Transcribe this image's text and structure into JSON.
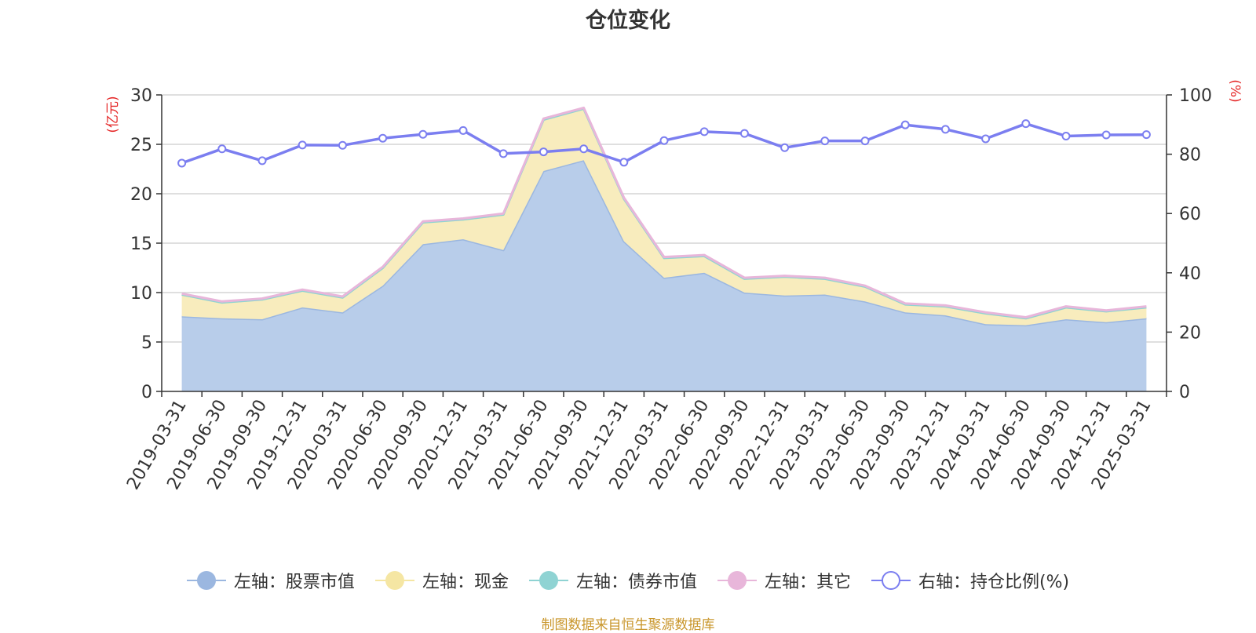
{
  "chart_data": {
    "type": "area",
    "title": "仓位变化",
    "left_axis_label": "(亿元)",
    "right_axis_label": "(%)",
    "left_ylim": [
      0,
      30
    ],
    "left_ticks": [
      0,
      5,
      10,
      15,
      20,
      25,
      30
    ],
    "right_ylim": [
      0,
      100
    ],
    "right_ticks": [
      0,
      20,
      40,
      60,
      80,
      100
    ],
    "grid": true,
    "legend_position": "bottom",
    "categories": [
      "2019-03-31",
      "2019-06-30",
      "2019-09-30",
      "2019-12-31",
      "2020-03-31",
      "2020-06-30",
      "2020-09-30",
      "2020-12-31",
      "2021-03-31",
      "2021-06-30",
      "2021-09-30",
      "2021-12-31",
      "2022-03-31",
      "2022-06-30",
      "2022-09-30",
      "2022-12-31",
      "2023-03-31",
      "2023-06-30",
      "2023-09-30",
      "2023-12-31",
      "2024-03-31",
      "2024-06-30",
      "2024-09-30",
      "2024-12-31",
      "2025-03-31"
    ],
    "series": [
      {
        "name": "左轴：股票市值",
        "axis": "left",
        "kind": "area-stack",
        "color": "#9bb7e0",
        "fill": "#b8cdea",
        "values": [
          7.6,
          7.4,
          7.3,
          8.5,
          8.0,
          10.7,
          14.9,
          15.4,
          14.3,
          22.3,
          23.4,
          15.2,
          11.5,
          12.0,
          10.0,
          9.7,
          9.8,
          9.1,
          8.0,
          7.7,
          6.8,
          6.7,
          7.3,
          7.0,
          7.4
        ]
      },
      {
        "name": "左轴：现金",
        "axis": "left",
        "kind": "area-stack",
        "color": "#f5e6a3",
        "fill": "#f8ecbd",
        "values": [
          2.2,
          1.6,
          2.0,
          1.7,
          1.5,
          1.8,
          2.2,
          2.0,
          3.6,
          5.2,
          5.2,
          4.3,
          2.0,
          1.7,
          1.4,
          1.9,
          1.6,
          1.5,
          0.8,
          0.9,
          1.1,
          0.7,
          1.2,
          1.1,
          1.1
        ]
      },
      {
        "name": "左轴：债券市值",
        "axis": "left",
        "kind": "area-stack",
        "color": "#8fd3d3",
        "fill": "#9ed6d6",
        "values": [
          0,
          0,
          0,
          0,
          0,
          0,
          0,
          0,
          0,
          0,
          0,
          0,
          0,
          0,
          0,
          0,
          0,
          0,
          0,
          0,
          0,
          0,
          0,
          0,
          0
        ]
      },
      {
        "name": "左轴：其它",
        "axis": "left",
        "kind": "area-stack",
        "color": "#e8b6da",
        "fill": "#efc8e4",
        "values": [
          0.1,
          0.1,
          0.1,
          0.1,
          0.1,
          0.1,
          0.1,
          0.1,
          0.1,
          0.1,
          0.1,
          0.1,
          0.1,
          0.1,
          0.1,
          0.1,
          0.1,
          0.1,
          0.1,
          0.1,
          0.1,
          0.1,
          0.1,
          0.1,
          0.1
        ]
      },
      {
        "name": "右轴：持仓比例(%)",
        "axis": "right",
        "kind": "line",
        "color": "#7b7ef0",
        "values": [
          77.0,
          81.8,
          77.8,
          83.1,
          83.0,
          85.4,
          86.7,
          88.0,
          80.2,
          80.8,
          81.8,
          77.3,
          84.6,
          87.6,
          87.0,
          82.2,
          84.5,
          84.5,
          89.9,
          88.4,
          85.2,
          90.3,
          86.1,
          86.5,
          86.6
        ]
      }
    ]
  },
  "source_note": "制图数据来自恒生聚源数据库"
}
